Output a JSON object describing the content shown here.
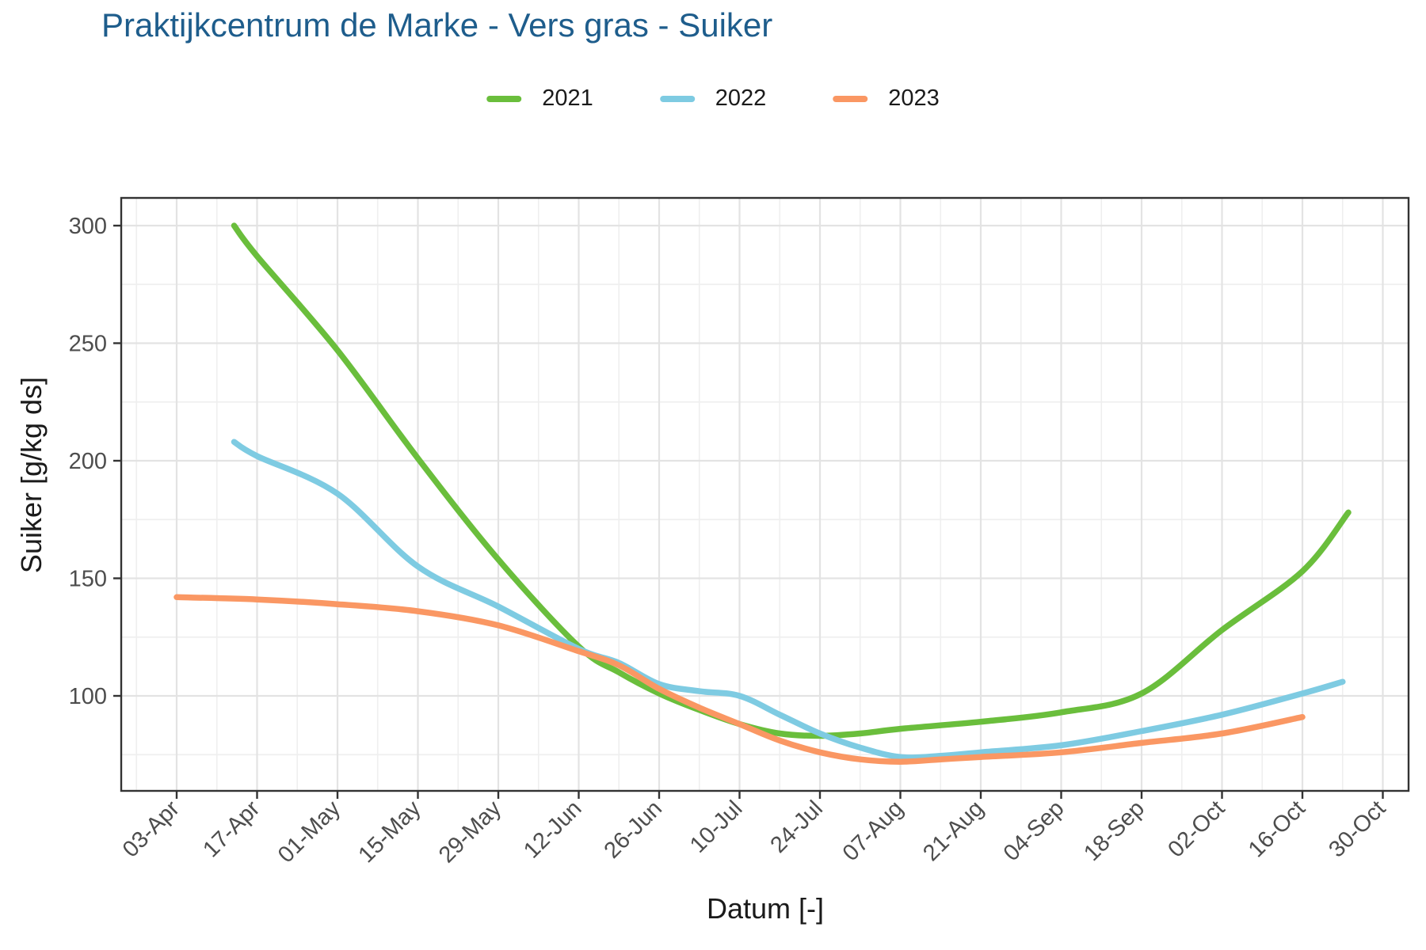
{
  "title": {
    "text": "Praktijkcentrum de Marke - Vers gras - Suiker"
  },
  "colors": {
    "title": "#1e5d8c",
    "tick_labels": "#4d4d4d",
    "axis_titles": "#1a1a1a",
    "panel_border": "#333333",
    "tick_marks": "#333333",
    "gridline_major": "#e3e3e3",
    "gridline_minor": "#efefef"
  },
  "chart_data": {
    "type": "line",
    "title": "Praktijkcentrum de Marke - Vers gras - Suiker",
    "xlabel": "Datum [-]",
    "ylabel": "Suiker [g/kg ds]",
    "x_unit": "day offset from 03-Apr",
    "ylim": [
      60,
      312
    ],
    "grid": "on",
    "legend_position": "top",
    "y_ticks": [
      100,
      150,
      200,
      250,
      300
    ],
    "x_ticks": [
      {
        "label": "03-Apr",
        "day": 0
      },
      {
        "label": "17-Apr",
        "day": 14
      },
      {
        "label": "01-May",
        "day": 28
      },
      {
        "label": "15-May",
        "day": 42
      },
      {
        "label": "29-May",
        "day": 56
      },
      {
        "label": "12-Jun",
        "day": 70
      },
      {
        "label": "26-Jun",
        "day": 84
      },
      {
        "label": "10-Jul",
        "day": 98
      },
      {
        "label": "24-Jul",
        "day": 112
      },
      {
        "label": "07-Aug",
        "day": 126
      },
      {
        "label": "21-Aug",
        "day": 140
      },
      {
        "label": "04-Sep",
        "day": 154
      },
      {
        "label": "18-Sep",
        "day": 168
      },
      {
        "label": "02-Oct",
        "day": 182
      },
      {
        "label": "16-Oct",
        "day": 196
      },
      {
        "label": "30-Oct",
        "day": 210
      }
    ],
    "series": [
      {
        "name": "2021",
        "color": "#6abe3c",
        "points": [
          [
            10,
            300
          ],
          [
            14,
            287
          ],
          [
            28,
            247
          ],
          [
            42,
            201
          ],
          [
            56,
            158
          ],
          [
            70,
            121
          ],
          [
            77,
            110
          ],
          [
            84,
            101
          ],
          [
            91,
            94
          ],
          [
            98,
            88
          ],
          [
            105,
            84
          ],
          [
            112,
            83
          ],
          [
            119,
            84
          ],
          [
            126,
            86
          ],
          [
            140,
            89
          ],
          [
            154,
            93
          ],
          [
            168,
            101
          ],
          [
            182,
            128
          ],
          [
            196,
            153
          ],
          [
            204,
            178
          ]
        ]
      },
      {
        "name": "2022",
        "color": "#7ecbe2",
        "points": [
          [
            10,
            208
          ],
          [
            14,
            202
          ],
          [
            28,
            186
          ],
          [
            42,
            155
          ],
          [
            56,
            138
          ],
          [
            70,
            120
          ],
          [
            77,
            114
          ],
          [
            84,
            105
          ],
          [
            91,
            102
          ],
          [
            98,
            100
          ],
          [
            105,
            92
          ],
          [
            112,
            84
          ],
          [
            119,
            78
          ],
          [
            126,
            74
          ],
          [
            133,
            74.5
          ],
          [
            140,
            76
          ],
          [
            154,
            79
          ],
          [
            168,
            85
          ],
          [
            182,
            92
          ],
          [
            196,
            101
          ],
          [
            203,
            106
          ]
        ]
      },
      {
        "name": "2023",
        "color": "#fa9763",
        "points": [
          [
            0,
            142
          ],
          [
            14,
            141
          ],
          [
            28,
            139
          ],
          [
            42,
            136
          ],
          [
            56,
            130
          ],
          [
            70,
            119
          ],
          [
            77,
            113
          ],
          [
            84,
            103
          ],
          [
            91,
            95
          ],
          [
            98,
            88
          ],
          [
            105,
            81
          ],
          [
            112,
            76
          ],
          [
            119,
            73
          ],
          [
            126,
            72
          ],
          [
            133,
            73
          ],
          [
            140,
            74
          ],
          [
            154,
            76
          ],
          [
            168,
            80
          ],
          [
            182,
            84
          ],
          [
            196,
            91
          ]
        ]
      }
    ]
  }
}
